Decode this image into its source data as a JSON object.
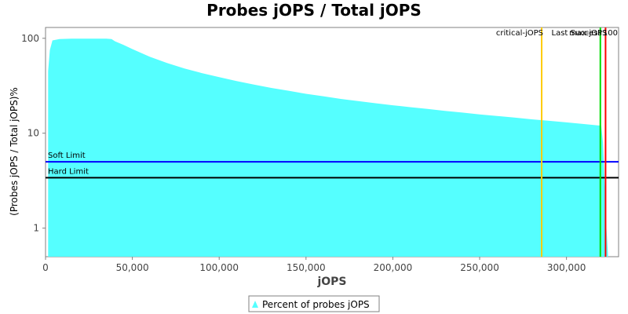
{
  "chart_data": {
    "type": "area",
    "title": "Probes jOPS / Total jOPS",
    "xlabel": "jOPS",
    "ylabel": "(Probes jOPS / Total jOPS)%",
    "xlim": [
      0,
      330000
    ],
    "ylim": [
      0.5,
      130
    ],
    "yscale": "log",
    "x_ticks": [
      0,
      50000,
      100000,
      150000,
      200000,
      250000,
      300000
    ],
    "x_tick_labels": [
      "0",
      "50,000",
      "100,000",
      "150,000",
      "200,000",
      "250,000",
      "300,000"
    ],
    "y_ticks": [
      1,
      10,
      100
    ],
    "y_tick_labels": [
      "1",
      "10",
      "100"
    ],
    "grid": false,
    "legend_position": "bottom-center",
    "series": [
      {
        "name": "Percent of probes jOPS",
        "color": "#55ffff",
        "x": [
          1500,
          2500,
          4000,
          8000,
          15000,
          25000,
          35000,
          38000,
          40000,
          45000,
          50000,
          60000,
          70000,
          80000,
          90000,
          100000,
          110000,
          120000,
          130000,
          140000,
          150000,
          160000,
          170000,
          180000,
          190000,
          200000,
          210000,
          220000,
          230000,
          240000,
          250000,
          260000,
          270000,
          280000,
          290000,
          300000,
          310000,
          320000,
          321000,
          322000,
          323000,
          324000
        ],
        "y": [
          45,
          75,
          95,
          98,
          99,
          99,
          99,
          98,
          93,
          85,
          77,
          64,
          55,
          48,
          43,
          39,
          35.5,
          32.5,
          30,
          28,
          26,
          24.5,
          23,
          21.8,
          20.7,
          19.7,
          18.8,
          18,
          17.2,
          16.5,
          15.8,
          15.2,
          14.6,
          14,
          13.5,
          13,
          12.5,
          12,
          8,
          3,
          1,
          0.5
        ]
      }
    ],
    "horizontal_lines": [
      {
        "label": "Soft Limit",
        "y": 5,
        "color": "#0000ff"
      },
      {
        "label": "Hard Limit",
        "y": 3.4,
        "color": "#000000"
      }
    ],
    "vertical_lines": [
      {
        "label": "critical-jOPS",
        "x": 285700,
        "color": "#ffcc00"
      },
      {
        "label": "Last Success",
        "x": 319500,
        "color": "#00dd00"
      },
      {
        "label": "max-jOPS",
        "x": 322500,
        "color": "#ff0000"
      }
    ],
    "top_right_annotation": "100"
  }
}
